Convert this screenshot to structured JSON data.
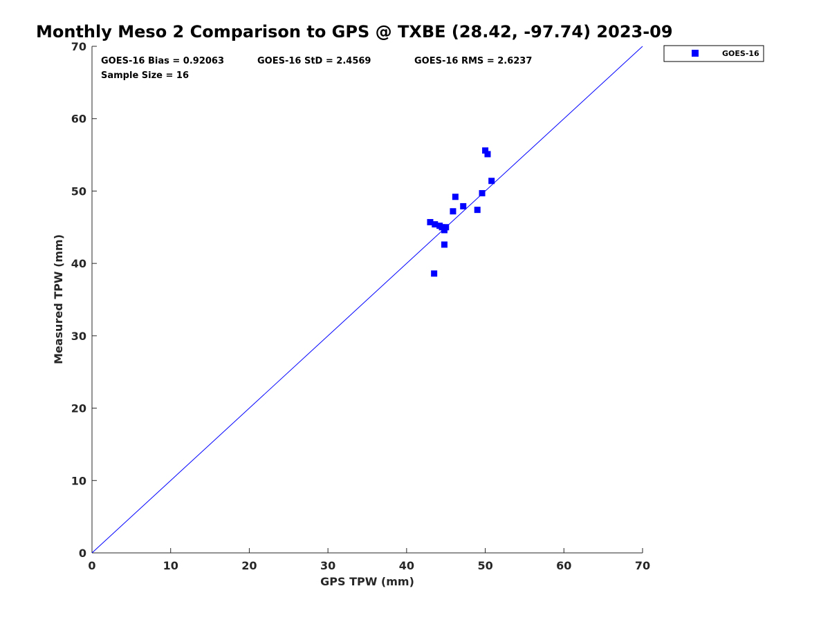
{
  "chart_data": {
    "type": "scatter",
    "title": "Monthly Meso 2 Comparison to GPS @ TXBE (28.42, -97.74) 2023-09",
    "xlabel": "GPS TPW (mm)",
    "ylabel": "Measured TPW (mm)",
    "xlim": [
      0,
      70
    ],
    "ylim": [
      0,
      70
    ],
    "xticks": [
      0,
      10,
      20,
      30,
      40,
      50,
      60,
      70
    ],
    "yticks": [
      0,
      10,
      20,
      30,
      40,
      50,
      60,
      70
    ],
    "grid": false,
    "legend_position": "outside-top-right",
    "reference_line": {
      "from": [
        0,
        0
      ],
      "to": [
        70,
        70
      ],
      "color": "#0000ff"
    },
    "annotations": {
      "bias": "GOES-16 Bias = 0.92063",
      "std": "GOES-16 StD = 2.4569",
      "rms": "GOES-16 RMS = 2.6237",
      "sample_size": "Sample Size = 16"
    },
    "series": [
      {
        "name": "GOES-16",
        "color": "#0000ff",
        "marker": "square",
        "points": [
          [
            43.0,
            45.7
          ],
          [
            43.6,
            45.4
          ],
          [
            44.2,
            45.2
          ],
          [
            44.8,
            44.6
          ],
          [
            45.0,
            45.0
          ],
          [
            44.8,
            42.6
          ],
          [
            43.5,
            38.6
          ],
          [
            45.9,
            47.2
          ],
          [
            46.2,
            49.2
          ],
          [
            47.2,
            47.9
          ],
          [
            49.0,
            47.4
          ],
          [
            49.6,
            49.7
          ],
          [
            50.0,
            55.6
          ],
          [
            50.3,
            55.1
          ],
          [
            50.8,
            51.4
          ],
          [
            44.5,
            45.0
          ]
        ]
      }
    ]
  }
}
